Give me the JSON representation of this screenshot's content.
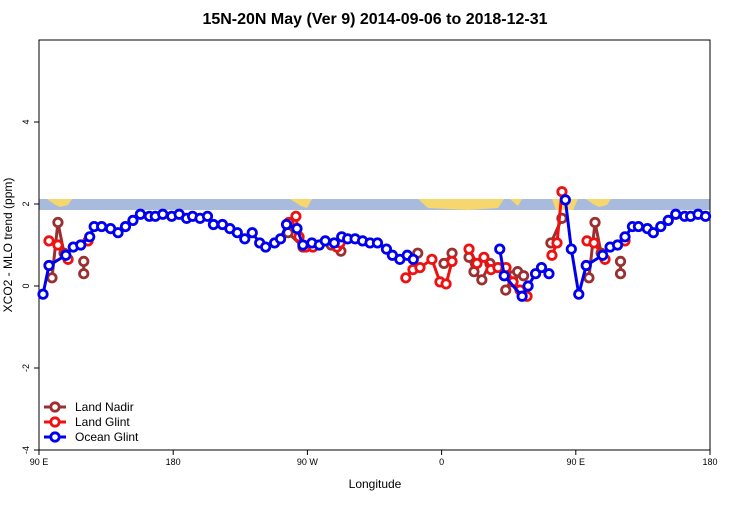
{
  "chart_data": {
    "type": "line",
    "title": "15N-20N May (Ver 9)   2014-09-06 to 2018-12-31",
    "x_label": "Longitude",
    "y_label": "XCO2 - MLO trend (ppm)",
    "xlim": [
      90,
      540
    ],
    "xticks": [
      {
        "value": 90,
        "label": "90 E"
      },
      180,
      {
        "value": 270,
        "label": "90 W"
      },
      0,
      {
        "value": 450,
        "label": "90 E"
      },
      180
    ],
    "xtick_positions": [
      90,
      180,
      270,
      360,
      450,
      540
    ],
    "ylim": [
      -4,
      6
    ],
    "yticks": [
      -4,
      -2,
      0,
      2,
      4
    ],
    "legend": "bottomleft",
    "series": [
      {
        "name": "Land Nadir",
        "color": "#9b3030",
        "x": [
          98.7,
          102.7,
          106.8,
          null,
          120,
          120,
          null,
          257,
          267,
          null,
          286,
          292.5,
          null,
          344,
          null,
          361.6,
          367,
          null,
          378.4,
          381.7,
          387,
          392.4,
          null,
          403,
          408,
          411,
          415,
          null,
          433.3,
          440.7,
          null,
          458.8,
          462.9,
          467,
          null,
          480,
          480
        ],
        "values": [
          0.2,
          1.55,
          0.8,
          null,
          0.6,
          0.3,
          null,
          1.3,
          0.95,
          null,
          1.0,
          0.85,
          null,
          0.8,
          null,
          0.55,
          0.8,
          null,
          0.7,
          0.35,
          0.15,
          0.55,
          null,
          -0.1,
          0.25,
          0.35,
          0.25,
          null,
          1.05,
          1.65,
          null,
          0.2,
          1.55,
          0.8,
          null,
          0.6,
          0.3
        ]
      },
      {
        "name": "Land Glint",
        "color": "#ee1111",
        "x": [
          96.7,
          102.7,
          109.5,
          null,
          122.9,
          null,
          257.6,
          262.3,
          264.4,
          269,
          273.7,
          null,
          289.8,
          291.9,
          null,
          336,
          340.8,
          345.5,
          353.5,
          358.9,
          363,
          367,
          null,
          378.4,
          383.7,
          388.4,
          393.1,
          397.8,
          403.2,
          407.9,
          412.6,
          417.3,
          null,
          434,
          437.4,
          440.7,
          null,
          457.5,
          462.2,
          469.6,
          null,
          483
        ],
        "values": [
          1.1,
          1.0,
          0.65,
          null,
          1.1,
          null,
          1.55,
          1.7,
          1.2,
          0.95,
          0.95,
          null,
          0.95,
          1.05,
          null,
          0.2,
          0.4,
          0.45,
          0.65,
          0.1,
          0.05,
          0.6,
          null,
          0.9,
          0.55,
          0.7,
          0.4,
          0.45,
          0.45,
          0.1,
          -0.1,
          -0.25,
          null,
          0.75,
          1.05,
          2.3,
          null,
          1.1,
          1.05,
          0.65,
          null,
          1.1
        ]
      },
      {
        "name": "Ocean Glint",
        "color": "#0000ee",
        "x": [
          92.7,
          96.7,
          108,
          113,
          118,
          124,
          127,
          132,
          138,
          143,
          148,
          153,
          158,
          164,
          168,
          173,
          179,
          184,
          189,
          193,
          198,
          203,
          207,
          213,
          218,
          223,
          228,
          233,
          238,
          242,
          248,
          252,
          256,
          263,
          267,
          273,
          278,
          282,
          288,
          293,
          297,
          302,
          307,
          312,
          317,
          323,
          327,
          332,
          337,
          341,
          null,
          399,
          402,
          414,
          418,
          423,
          427,
          432,
          null,
          443,
          447,
          452,
          457,
          468,
          473,
          478,
          483,
          488,
          492,
          498,
          502,
          507,
          512,
          517,
          523,
          527,
          532,
          537
        ],
        "values": [
          -0.2,
          0.5,
          0.75,
          0.95,
          1.0,
          1.2,
          1.45,
          1.45,
          1.4,
          1.3,
          1.45,
          1.6,
          1.75,
          1.7,
          1.7,
          1.75,
          1.7,
          1.75,
          1.65,
          1.7,
          1.65,
          1.7,
          1.5,
          1.5,
          1.4,
          1.3,
          1.15,
          1.3,
          1.05,
          0.95,
          1.05,
          1.15,
          1.5,
          1.4,
          1.0,
          1.05,
          1.0,
          1.1,
          1.05,
          1.2,
          1.15,
          1.15,
          1.1,
          1.05,
          1.05,
          0.9,
          0.75,
          0.65,
          0.75,
          0.65,
          null,
          0.9,
          0.25,
          -0.25,
          0.0,
          0.3,
          0.45,
          0.3,
          null,
          2.1,
          0.9,
          -0.2,
          0.5,
          0.75,
          0.95,
          1.0,
          1.2,
          1.45,
          1.45,
          1.4,
          1.3,
          1.45,
          1.6,
          1.75,
          1.7,
          1.7,
          1.75,
          1.7
        ]
      }
    ]
  }
}
